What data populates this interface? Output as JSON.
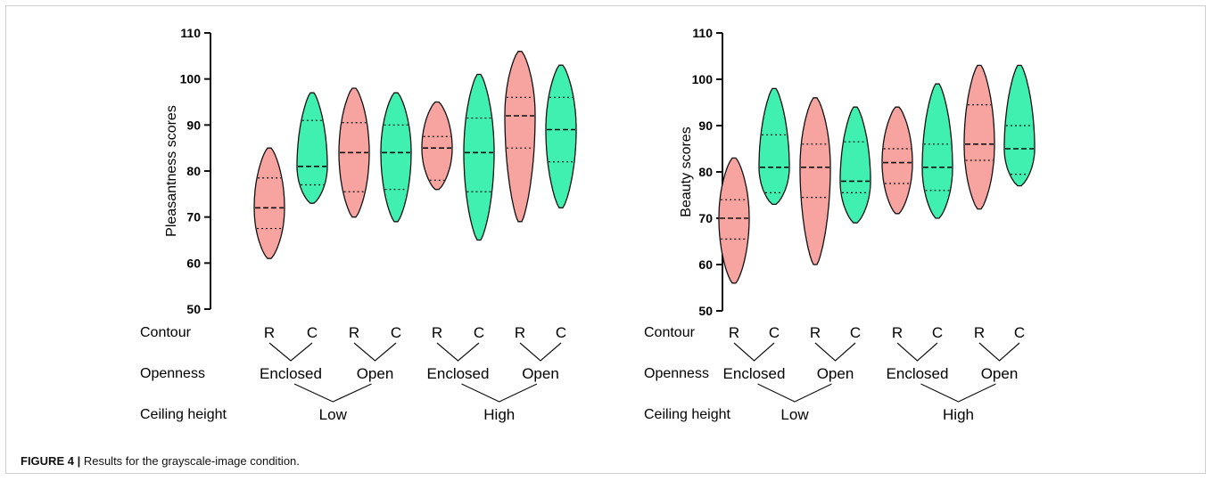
{
  "caption": {
    "label": "FIGURE 4 |",
    "text": "Results for the grayscale-image condition."
  },
  "colors": {
    "rect": "#f7a3a0",
    "curved": "#3ff0b0",
    "stroke": "#111111"
  },
  "chart_data": [
    {
      "type": "violin",
      "ylabel": "Pleasantness scores",
      "ylim": [
        50,
        110
      ],
      "yticks": [
        50,
        60,
        70,
        80,
        90,
        100,
        110
      ],
      "row_labels": [
        "Contour",
        "Openness",
        "Ceiling height"
      ],
      "contour_labels": [
        "R",
        "C",
        "R",
        "C",
        "R",
        "C",
        "R",
        "C"
      ],
      "openness_labels": [
        "Enclosed",
        "Open",
        "Enclosed",
        "Open"
      ],
      "ceiling_labels": [
        "Low",
        "High"
      ],
      "groups": [
        {
          "contour": "R",
          "min": 61,
          "max": 85,
          "q1": 67.5,
          "median": 72,
          "q3": 78.5
        },
        {
          "contour": "C",
          "min": 73,
          "max": 97,
          "q1": 77,
          "median": 81,
          "q3": 91
        },
        {
          "contour": "R",
          "min": 70,
          "max": 98,
          "q1": 75.5,
          "median": 84,
          "q3": 90.5
        },
        {
          "contour": "C",
          "min": 69,
          "max": 97,
          "q1": 76,
          "median": 84,
          "q3": 90
        },
        {
          "contour": "R",
          "min": 76,
          "max": 95,
          "q1": 78,
          "median": 85,
          "q3": 87.5
        },
        {
          "contour": "C",
          "min": 65,
          "max": 101,
          "q1": 75.5,
          "median": 84,
          "q3": 91.5
        },
        {
          "contour": "R",
          "min": 69,
          "max": 106,
          "q1": 85,
          "median": 92,
          "q3": 96
        },
        {
          "contour": "C",
          "min": 72,
          "max": 103,
          "q1": 82,
          "median": 89,
          "q3": 96
        }
      ]
    },
    {
      "type": "violin",
      "ylabel": "Beauty scores",
      "ylim": [
        50,
        110
      ],
      "yticks": [
        50,
        60,
        70,
        80,
        90,
        100,
        110
      ],
      "row_labels": [
        "Contour",
        "Openness",
        "Ceiling height"
      ],
      "contour_labels": [
        "R",
        "C",
        "R",
        "C",
        "R",
        "C",
        "R",
        "C"
      ],
      "openness_labels": [
        "Enclosed",
        "Open",
        "Enclosed",
        "Open"
      ],
      "ceiling_labels": [
        "Low",
        "High"
      ],
      "groups": [
        {
          "contour": "R",
          "min": 56,
          "max": 83,
          "q1": 65.5,
          "median": 70,
          "q3": 74
        },
        {
          "contour": "C",
          "min": 73,
          "max": 98,
          "q1": 75.5,
          "median": 81,
          "q3": 88
        },
        {
          "contour": "R",
          "min": 60,
          "max": 96,
          "q1": 74.5,
          "median": 81,
          "q3": 86
        },
        {
          "contour": "C",
          "min": 69,
          "max": 94,
          "q1": 75.5,
          "median": 78,
          "q3": 86.5
        },
        {
          "contour": "R",
          "min": 71,
          "max": 94,
          "q1": 77.5,
          "median": 82,
          "q3": 85
        },
        {
          "contour": "C",
          "min": 70,
          "max": 99,
          "q1": 76,
          "median": 81,
          "q3": 86
        },
        {
          "contour": "R",
          "min": 72,
          "max": 103,
          "q1": 82.5,
          "median": 86,
          "q3": 94.5
        },
        {
          "contour": "C",
          "min": 77,
          "max": 103,
          "q1": 79.5,
          "median": 85,
          "q3": 90
        }
      ]
    }
  ]
}
